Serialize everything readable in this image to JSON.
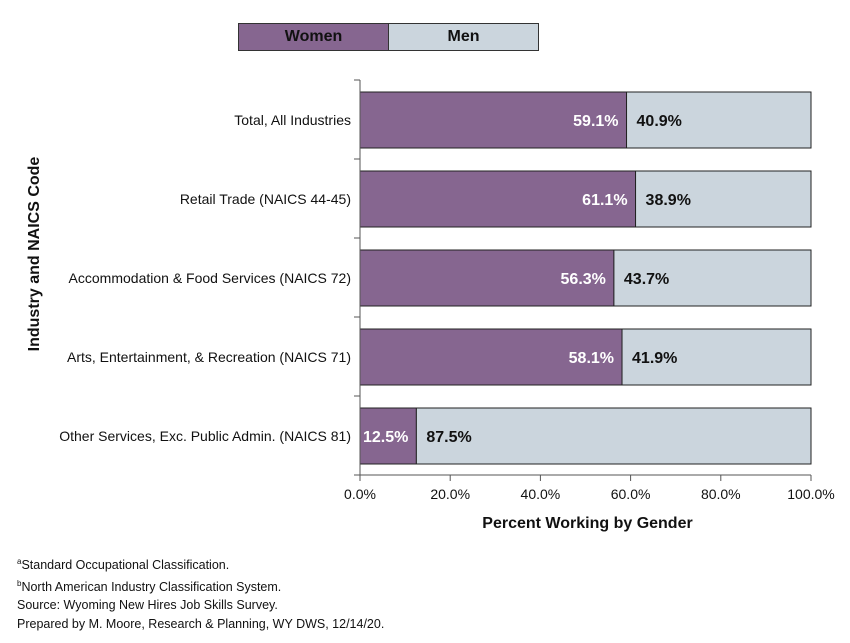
{
  "chart_data": {
    "type": "bar",
    "orientation": "horizontal",
    "stacked": true,
    "categories": [
      "Total, All Industries",
      "Retail Trade (NAICS 44-45)",
      "Accommodation & Food Services (NAICS 72)",
      "Arts, Entertainment, & Recreation (NAICS 71)",
      "Other Services, Exc. Public Admin. (NAICS 81)"
    ],
    "series": [
      {
        "name": "Women",
        "values": [
          59.1,
          61.1,
          56.3,
          58.1,
          12.5
        ],
        "labels": [
          "59.1%",
          "61.1%",
          "56.3%",
          "58.1%",
          "12.5%"
        ],
        "color": "#866690"
      },
      {
        "name": "Men",
        "values": [
          40.9,
          38.9,
          43.7,
          41.9,
          87.5
        ],
        "labels": [
          "40.9%",
          "38.9%",
          "43.7%",
          "41.9%",
          "87.5%"
        ],
        "color": "#cbd5dd"
      }
    ],
    "xlabel": "Percent Working by Gender",
    "ylabel": "Industry and NAICS Code",
    "xlim": [
      0,
      100
    ],
    "ticks": [
      "0.0%",
      "20.0%",
      "40.0%",
      "60.0%",
      "80.0%",
      "100.0%"
    ],
    "grid": false,
    "legend_position": "top"
  },
  "footnotes": {
    "a_marker": "a",
    "a_text": "Standard Occupational Classification.",
    "b_marker": "b",
    "b_text": "North American Industry Classification System.",
    "source": "Source: Wyoming New Hires Job Skills Survey.",
    "prepared": "Prepared by M. Moore, Research & Planning, WY DWS, 12/14/20."
  }
}
